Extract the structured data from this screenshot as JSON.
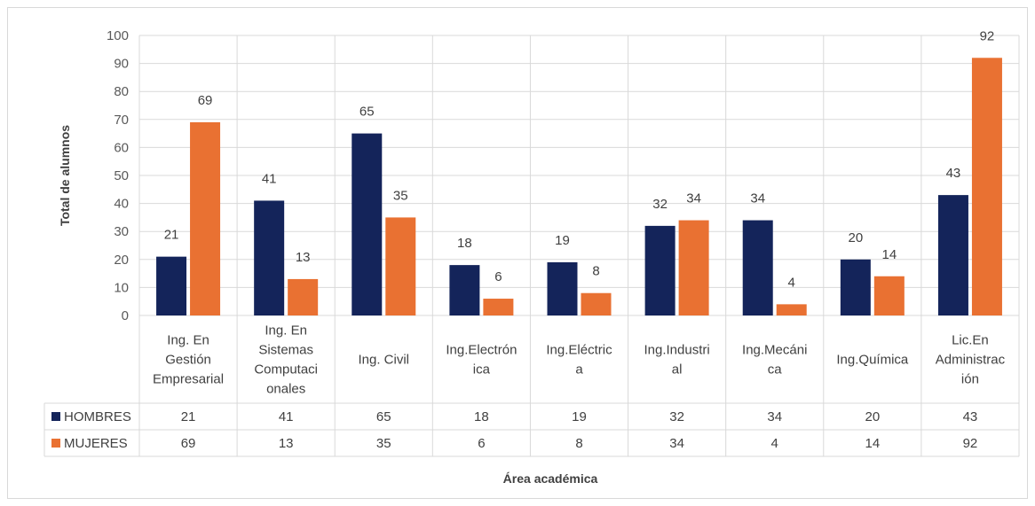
{
  "chart_data": {
    "type": "bar",
    "categories": [
      [
        "Ing. En",
        "Gestión",
        "Empresarial"
      ],
      [
        "Ing. En",
        "Sistemas",
        "Computaci",
        "onales"
      ],
      [
        "Ing. Civil"
      ],
      [
        "Ing.Electrón",
        "ica"
      ],
      [
        "Ing.Eléctric",
        "a"
      ],
      [
        "Ing.Industri",
        "al"
      ],
      [
        "Ing.Mecáni",
        "ca"
      ],
      [
        "Ing.Química"
      ],
      [
        "Lic.En",
        "Administrac",
        "ión"
      ]
    ],
    "series": [
      {
        "name": "HOMBRES",
        "color": "#14245a",
        "values": [
          21,
          41,
          65,
          18,
          19,
          32,
          34,
          20,
          43
        ]
      },
      {
        "name": "MUJERES",
        "color": "#e97132",
        "values": [
          69,
          13,
          35,
          6,
          8,
          34,
          4,
          14,
          92
        ]
      }
    ],
    "xlabel": "Área académica",
    "ylabel": "Total de alumnos",
    "ylim": [
      0,
      100
    ],
    "yticks": [
      0,
      10,
      20,
      30,
      40,
      50,
      60,
      70,
      80,
      90,
      100
    ],
    "grid": true,
    "legend": "data-table"
  }
}
